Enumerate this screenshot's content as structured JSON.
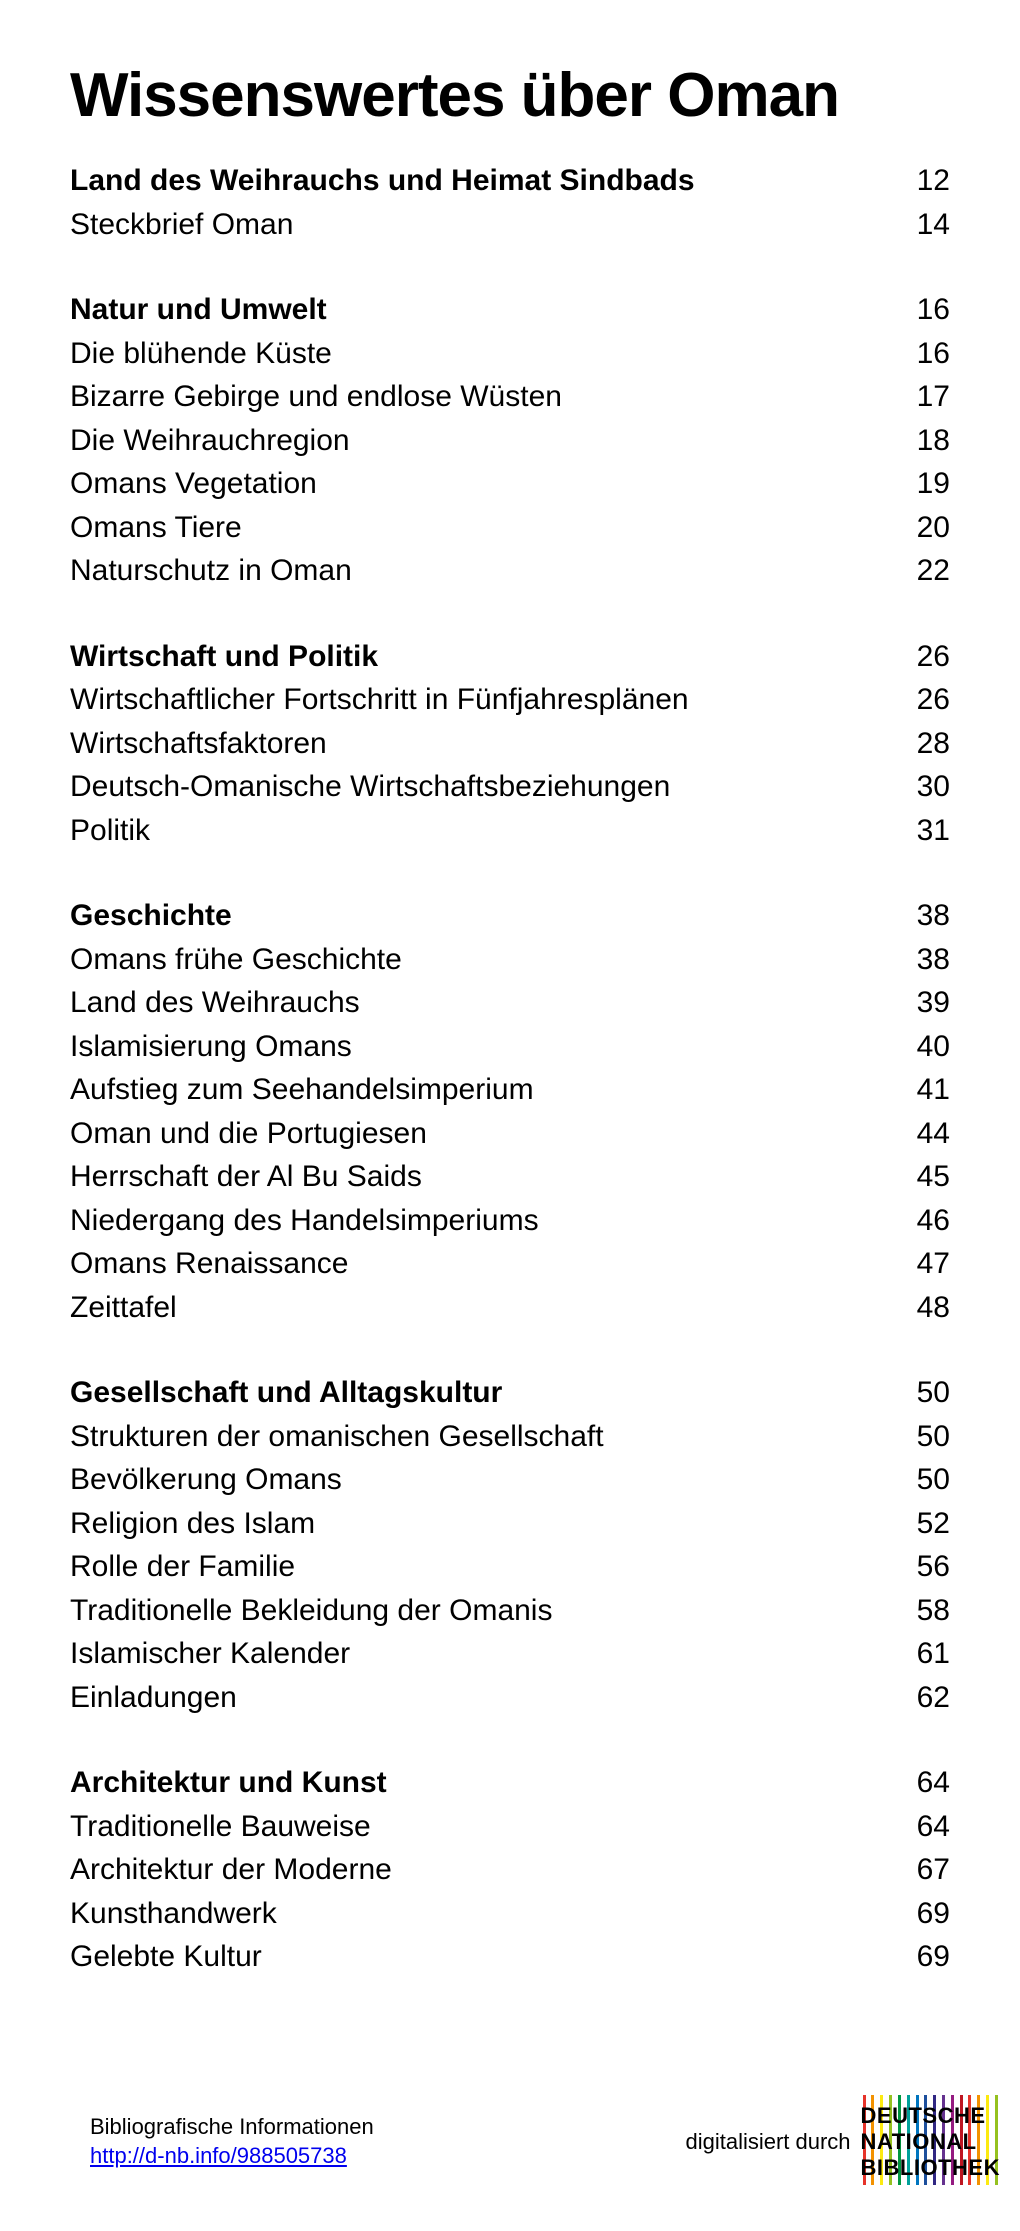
{
  "title": "Wissenswertes über Oman",
  "sections": [
    {
      "entries": [
        {
          "label": "Land des Weihrauchs und Heimat Sindbads",
          "page": "12",
          "bold": true
        },
        {
          "label": "Steckbrief Oman",
          "page": "14",
          "bold": false
        }
      ]
    },
    {
      "entries": [
        {
          "label": "Natur und Umwelt",
          "page": "16",
          "bold": true
        },
        {
          "label": "Die blühende Küste",
          "page": "16",
          "bold": false
        },
        {
          "label": "Bizarre Gebirge und endlose Wüsten",
          "page": "17",
          "bold": false
        },
        {
          "label": "Die Weihrauchregion",
          "page": "18",
          "bold": false
        },
        {
          "label": "Omans Vegetation",
          "page": "19",
          "bold": false
        },
        {
          "label": "Omans Tiere",
          "page": "20",
          "bold": false
        },
        {
          "label": "Naturschutz in Oman",
          "page": "22",
          "bold": false
        }
      ]
    },
    {
      "entries": [
        {
          "label": "Wirtschaft und Politik",
          "page": "26",
          "bold": true
        },
        {
          "label": "Wirtschaftlicher Fortschritt in Fünfjahresplänen",
          "page": "26",
          "bold": false
        },
        {
          "label": "Wirtschaftsfaktoren",
          "page": "28",
          "bold": false
        },
        {
          "label": "Deutsch-Omanische Wirtschaftsbeziehungen",
          "page": "30",
          "bold": false
        },
        {
          "label": "Politik",
          "page": "31",
          "bold": false
        }
      ]
    },
    {
      "entries": [
        {
          "label": "Geschichte",
          "page": "38",
          "bold": true
        },
        {
          "label": "Omans frühe Geschichte",
          "page": "38",
          "bold": false
        },
        {
          "label": "Land des Weihrauchs",
          "page": "39",
          "bold": false
        },
        {
          "label": "Islamisierung Omans",
          "page": "40",
          "bold": false
        },
        {
          "label": "Aufstieg zum Seehandelsimperium",
          "page": "41",
          "bold": false
        },
        {
          "label": "Oman und die Portugiesen",
          "page": "44",
          "bold": false
        },
        {
          "label": "Herrschaft der Al Bu Saids",
          "page": "45",
          "bold": false
        },
        {
          "label": "Niedergang des Handelsimperiums",
          "page": "46",
          "bold": false
        },
        {
          "label": "Omans Renaissance",
          "page": "47",
          "bold": false
        },
        {
          "label": "Zeittafel",
          "page": "48",
          "bold": false
        }
      ]
    },
    {
      "entries": [
        {
          "label": "Gesellschaft und Alltagskultur",
          "page": "50",
          "bold": true
        },
        {
          "label": "Strukturen der omanischen Gesellschaft",
          "page": "50",
          "bold": false
        },
        {
          "label": "Bevölkerung Omans",
          "page": "50",
          "bold": false
        },
        {
          "label": "Religion des Islam",
          "page": "52",
          "bold": false
        },
        {
          "label": "Rolle der Familie",
          "page": "56",
          "bold": false
        },
        {
          "label": "Traditionelle Bekleidung der Omanis",
          "page": "58",
          "bold": false
        },
        {
          "label": "Islamischer Kalender",
          "page": "61",
          "bold": false
        },
        {
          "label": "Einladungen",
          "page": "62",
          "bold": false
        }
      ]
    },
    {
      "entries": [
        {
          "label": "Architektur und Kunst",
          "page": "64",
          "bold": true
        },
        {
          "label": "Traditionelle Bauweise",
          "page": "64",
          "bold": false
        },
        {
          "label": "Architektur der Moderne",
          "page": "67",
          "bold": false
        },
        {
          "label": "Kunsthandwerk",
          "page": "69",
          "bold": false
        },
        {
          "label": "Gelebte Kultur",
          "page": "69",
          "bold": false
        }
      ]
    }
  ],
  "footer": {
    "info_label": "Bibliografische Informationen",
    "link_text": "http://d-nb.info/988505738",
    "digitized_label": "digitalisiert durch",
    "logo_line1": "DEUTSCHE",
    "logo_line2": "NATIONAL",
    "logo_line3": "BIBLIOTHEK",
    "bar_colors": [
      "#e6332a",
      "#f39200",
      "#fcea10",
      "#95c11f",
      "#009640",
      "#00a19a",
      "#0075bf",
      "#1d4f9c",
      "#312783",
      "#65328f",
      "#951b81",
      "#be1622",
      "#e6332a",
      "#f39200",
      "#fcea10",
      "#95c11f"
    ]
  },
  "styles": {
    "title_fontsize": 62,
    "entry_fontsize": 30,
    "footer_fontsize": 22,
    "background": "#ffffff",
    "text_color": "#000000",
    "link_color": "#0000ee"
  }
}
